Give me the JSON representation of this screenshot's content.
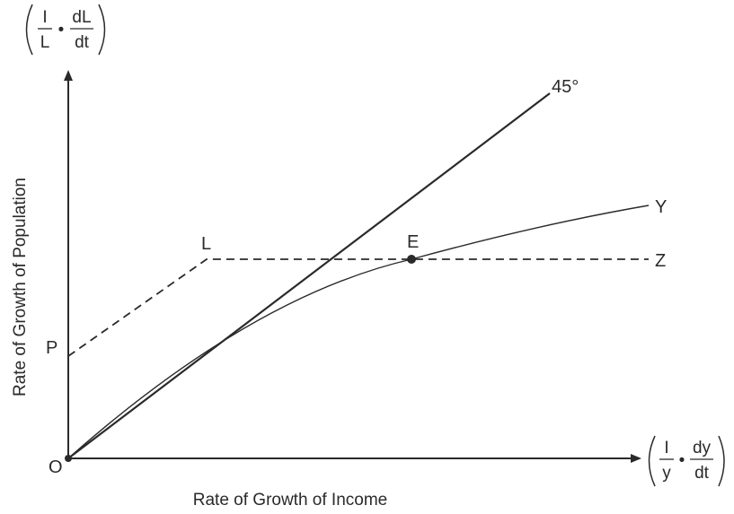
{
  "y_axis": {
    "title": "Rate of Growth of Population",
    "fraction_label": {
      "left_num": "I",
      "left_den": "L",
      "dot": "•",
      "right_num": "dL",
      "right_den": "dt"
    }
  },
  "x_axis": {
    "title": "Rate of Growth of Income",
    "fraction_label": {
      "left_num": "I",
      "left_den": "y",
      "dot": "•",
      "right_num": "dy",
      "right_den": "dt"
    }
  },
  "curves": {
    "forty_five_label": "45°",
    "y_label": "Y",
    "z_label": "Z"
  },
  "points": {
    "origin": "O",
    "p": "P",
    "l": "L",
    "e": "E"
  }
}
